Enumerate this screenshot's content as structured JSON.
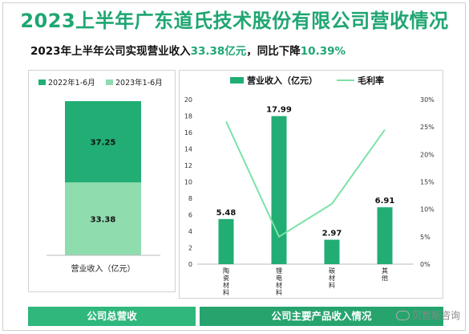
{
  "header": {
    "title": "2023上半年广东道氏技术股份有限公司营收情况",
    "subtitle_prefix": "2023年上半年公司实现营业收入",
    "subtitle_value": "33.38亿元",
    "subtitle_mid": "，同比下降",
    "subtitle_change": "10.39%"
  },
  "colors": {
    "title": "#1fa672",
    "dark_green": "#21ad74",
    "light_green": "#8fdcaf",
    "line_green": "#7be3a6",
    "footer_left": "#2fb77c",
    "footer_right": "#27a46e"
  },
  "chart_data": [
    {
      "type": "bar",
      "stacked": true,
      "categories": [
        "营业收入（亿元）"
      ],
      "series": [
        {
          "name": "2022年1-6月",
          "values": [
            37.25
          ],
          "color": "#21ad74"
        },
        {
          "name": "2023年1-6月",
          "values": [
            33.38
          ],
          "color": "#8fdcaf"
        }
      ],
      "legend": [
        "2022年1-6月",
        "2023年1-6月"
      ],
      "xlabel": "营业收入（亿元）",
      "legend_position": "top"
    },
    {
      "type": "bar",
      "categories": [
        "陶瓷材料",
        "锂电材料",
        "碳材料",
        "其他"
      ],
      "series": [
        {
          "name": "营业收入（亿元）",
          "type": "bar",
          "axis": "left",
          "values": [
            5.48,
            17.99,
            2.97,
            6.91
          ],
          "color": "#21ad74"
        },
        {
          "name": "毛利率",
          "type": "line",
          "axis": "right",
          "values": [
            26,
            5,
            11,
            24.5
          ],
          "color": "#7be3a6"
        }
      ],
      "ylim": [
        0,
        20
      ],
      "yticks": [
        "0",
        "2",
        "4",
        "6",
        "8",
        "10",
        "12",
        "14",
        "16",
        "18",
        "20"
      ],
      "y2lim": [
        0,
        30
      ],
      "y2ticks": [
        "0%",
        "5%",
        "10%",
        "15%",
        "20%",
        "25%",
        "30%"
      ],
      "legend_position": "top",
      "grid": false
    }
  ],
  "footer": {
    "left": "公司总营收",
    "right": "公司主要产品收入情况"
  },
  "watermark": "贝哲斯咨询"
}
